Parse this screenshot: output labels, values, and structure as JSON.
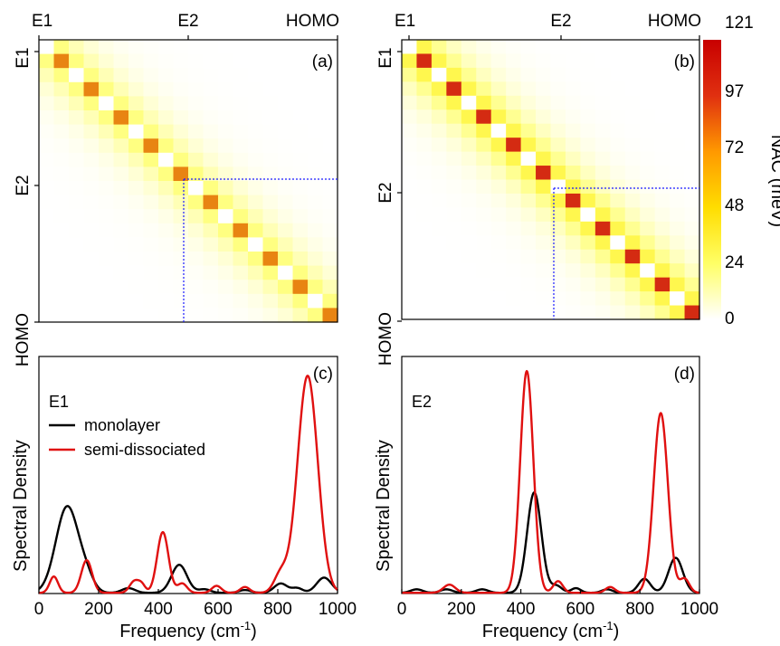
{
  "chart_data": [
    {
      "id": "a",
      "type": "heatmap",
      "panel_label": "(a)",
      "top_tick_labels": [
        "E1",
        "E2",
        "HOMO"
      ],
      "left_tick_labels": [
        "E1",
        "E2",
        "HOMO"
      ],
      "matrix_size": 20,
      "diagonal_values": [
        0,
        95,
        0,
        95,
        0,
        95,
        0,
        95,
        0,
        95,
        0,
        95,
        0,
        95,
        0,
        95,
        0,
        95,
        0,
        95
      ],
      "offdiagonal_peak": 20,
      "colors": {
        "diagonal_high": "#e88412",
        "diagonal_low": "#ffffff"
      },
      "dotted_line_at_state": 10
    },
    {
      "id": "b",
      "type": "heatmap",
      "panel_label": "(b)",
      "top_tick_labels": [
        "E1",
        "E2",
        "HOMO"
      ],
      "left_tick_labels": [
        "E1",
        "E2",
        "HOMO"
      ],
      "matrix_size": 20,
      "diagonal_values": [
        0,
        115,
        0,
        115,
        0,
        115,
        0,
        115,
        0,
        115,
        0,
        115,
        0,
        115,
        0,
        115,
        0,
        115,
        0,
        115
      ],
      "offdiagonal_peak": 30,
      "colors": {
        "diagonal_high": "#d42b12",
        "diagonal_low": "#ffffff"
      },
      "dotted_line_at_state": 10,
      "colorbar": {
        "label": "NAC (meV)",
        "ticks": [
          "121",
          "97",
          "72",
          "48",
          "24",
          "0"
        ],
        "min": 0,
        "max": 121,
        "colors": [
          "#ffffff",
          "#ffff66",
          "#ffdd00",
          "#ff9900",
          "#e03010",
          "#c80000"
        ]
      }
    },
    {
      "id": "c",
      "type": "line",
      "panel_label": "(c)",
      "state_label": "E1",
      "xlabel": "Frequency (cm",
      "xlabel_sup": "-1",
      "xlabel_end": ")",
      "ylabel": "Spectral Density",
      "xlim": [
        0,
        1000
      ],
      "ylim": [
        0,
        1.0
      ],
      "xticks": [
        "0",
        "200",
        "400",
        "600",
        "800",
        "1000"
      ],
      "legend": [
        "monolayer",
        "semi-dissociated"
      ],
      "series": [
        {
          "name": "monolayer",
          "color": "#000000",
          "peaks": [
            [
              95,
              0.37,
              38
            ],
            [
              160,
              0.05,
              25
            ],
            [
              300,
              0.02,
              22
            ],
            [
              470,
              0.12,
              26
            ],
            [
              555,
              0.015,
              20
            ],
            [
              690,
              0.012,
              20
            ],
            [
              810,
              0.04,
              22
            ],
            [
              865,
              0.02,
              18
            ],
            [
              955,
              0.065,
              25
            ]
          ]
        },
        {
          "name": "semi-dissociated",
          "color": "#e01010",
          "peaks": [
            [
              50,
              0.07,
              14
            ],
            [
              160,
              0.14,
              18
            ],
            [
              320,
              0.05,
              16
            ],
            [
              345,
              0.03,
              12
            ],
            [
              415,
              0.26,
              19
            ],
            [
              480,
              0.04,
              16
            ],
            [
              595,
              0.03,
              16
            ],
            [
              690,
              0.025,
              16
            ],
            [
              810,
              0.08,
              22
            ],
            [
              900,
              0.93,
              34
            ]
          ]
        }
      ]
    },
    {
      "id": "d",
      "type": "line",
      "panel_label": "(d)",
      "state_label": "E2",
      "xlabel": "Frequency (cm",
      "xlabel_sup": "-1",
      "xlabel_end": ")",
      "ylabel": "Spectral Density",
      "xlim": [
        0,
        1000
      ],
      "ylim": [
        0,
        1.0
      ],
      "xticks": [
        "0",
        "200",
        "400",
        "600",
        "800",
        "1000"
      ],
      "series": [
        {
          "name": "monolayer",
          "color": "#000000",
          "peaks": [
            [
              50,
              0.015,
              20
            ],
            [
              150,
              0.015,
              20
            ],
            [
              270,
              0.015,
              20
            ],
            [
              445,
              0.43,
              24
            ],
            [
              520,
              0.03,
              18
            ],
            [
              585,
              0.02,
              16
            ],
            [
              690,
              0.015,
              18
            ],
            [
              815,
              0.06,
              20
            ],
            [
              920,
              0.15,
              24
            ]
          ]
        },
        {
          "name": "semi-dissociated",
          "color": "#e01010",
          "peaks": [
            [
              160,
              0.035,
              20
            ],
            [
              420,
              0.95,
              22
            ],
            [
              525,
              0.05,
              16
            ],
            [
              700,
              0.025,
              16
            ],
            [
              870,
              0.77,
              24
            ],
            [
              950,
              0.06,
              16
            ]
          ]
        }
      ]
    }
  ]
}
